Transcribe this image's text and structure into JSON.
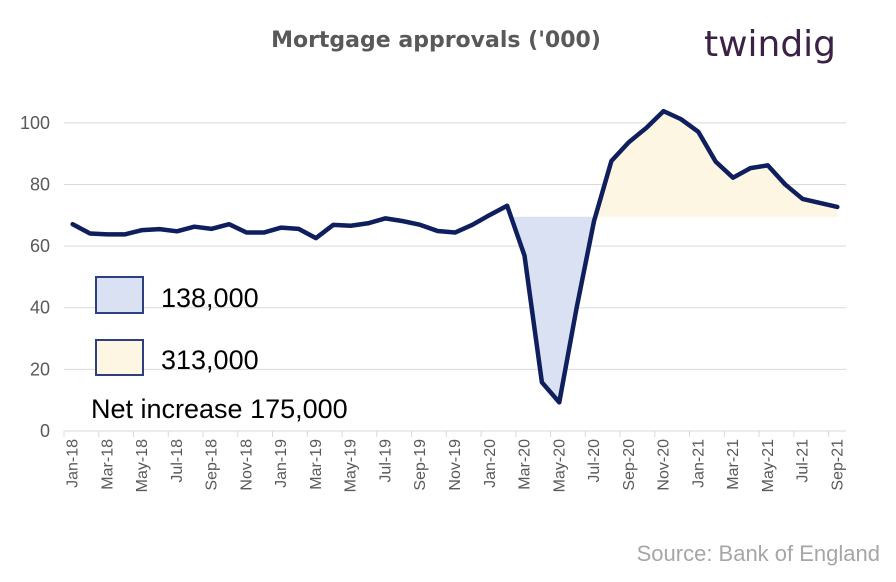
{
  "chart_data": {
    "type": "line",
    "title": "Mortgage approvals ('000)",
    "xlabel": "",
    "ylabel": "",
    "ylim": [
      0,
      110
    ],
    "yticks": [
      0,
      20,
      40,
      60,
      80,
      100
    ],
    "grid": true,
    "baseline": 69.5,
    "x": [
      "Jan-18",
      "Feb-18",
      "Mar-18",
      "Apr-18",
      "May-18",
      "Jun-18",
      "Jul-18",
      "Aug-18",
      "Sep-18",
      "Oct-18",
      "Nov-18",
      "Dec-18",
      "Jan-19",
      "Feb-19",
      "Mar-19",
      "Apr-19",
      "May-19",
      "Jun-19",
      "Jul-19",
      "Aug-19",
      "Sep-19",
      "Oct-19",
      "Nov-19",
      "Dec-19",
      "Jan-20",
      "Feb-20",
      "Mar-20",
      "Apr-20",
      "May-20",
      "Jun-20",
      "Jul-20",
      "Aug-20",
      "Sep-20",
      "Oct-20",
      "Nov-20",
      "Dec-20",
      "Jan-21",
      "Feb-21",
      "Mar-21",
      "Apr-21",
      "May-21",
      "Jun-21",
      "Jul-21",
      "Aug-21",
      "Sep-21"
    ],
    "xtick_labels": [
      "Jan-18",
      "Mar-18",
      "May-18",
      "Jul-18",
      "Sep-18",
      "Nov-18",
      "Jan-19",
      "Mar-19",
      "May-19",
      "Jul-19",
      "Sep-19",
      "Nov-19",
      "Jan-20",
      "Mar-20",
      "May-20",
      "Jul-20",
      "Sep-20",
      "Nov-20",
      "Jan-21",
      "Mar-21",
      "May-21",
      "Jul-21",
      "Sep-21"
    ],
    "series": [
      {
        "values": [
          67.1,
          64.1,
          63.8,
          63.8,
          65.2,
          65.5,
          64.8,
          66.3,
          65.6,
          67.1,
          64.4,
          64.4,
          66.0,
          65.6,
          62.6,
          66.9,
          66.6,
          67.4,
          69.0,
          68.1,
          66.9,
          64.9,
          64.4,
          66.9,
          70.1,
          73.1,
          56.9,
          15.8,
          9.3,
          40.0,
          68.1,
          87.6,
          93.7,
          98.3,
          103.8,
          101.2,
          97.1,
          87.4,
          82.2,
          85.3,
          86.2,
          80.0,
          75.3,
          74.0,
          72.7
        ]
      }
    ],
    "colors": {
      "line": "#0f1f5e",
      "shortfall_fill": "#dae1f2",
      "surplus_fill": "#fdf6e2",
      "legend_border": "#2e3f7f",
      "grid": "#d9d9d9"
    }
  },
  "legend": {
    "shortfall_label": "138,000",
    "surplus_label": "313,000",
    "net_label": "Net increase 175,000"
  },
  "brand": "twindig",
  "source": "Source: Bank of England"
}
